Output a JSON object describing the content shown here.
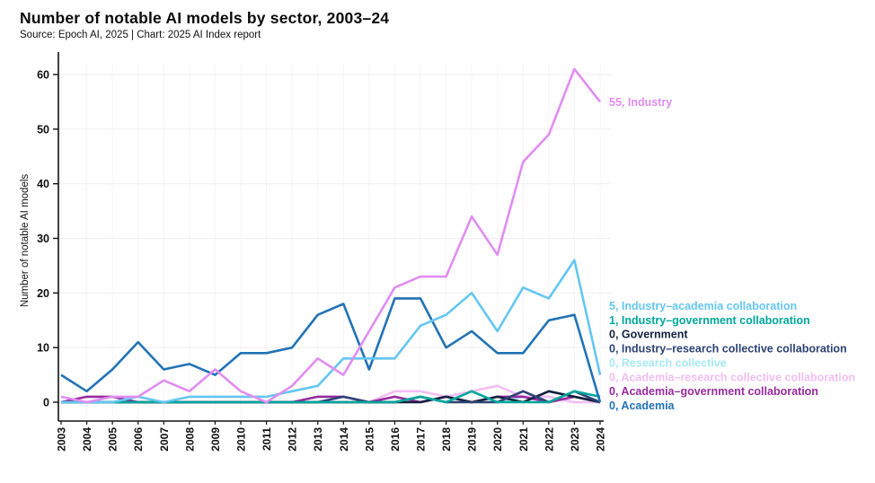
{
  "header": {
    "title": "Number of notable AI models by sector, 2003–24",
    "subtitle": "Source: Epoch AI, 2025 | Chart: 2025 AI Index report"
  },
  "chart_data": {
    "type": "line",
    "title": "Number of notable AI models by sector, 2003–24",
    "xlabel": "",
    "ylabel": "Number of notable AI models",
    "ylim": [
      0,
      60
    ],
    "yticks": [
      0,
      10,
      20,
      30,
      40,
      50,
      60
    ],
    "grid": true,
    "legend_position": "right-end-labels",
    "x": [
      2003,
      2004,
      2005,
      2006,
      2007,
      2008,
      2009,
      2010,
      2011,
      2012,
      2013,
      2014,
      2015,
      2016,
      2017,
      2018,
      2019,
      2020,
      2021,
      2022,
      2023,
      2024
    ],
    "series": [
      {
        "name": "Industry",
        "color": "#e18df2",
        "end_label": "55, Industry",
        "label_slot": "line-end",
        "values": [
          1,
          0,
          1,
          1,
          4,
          2,
          6,
          2,
          0,
          3,
          8,
          5,
          13,
          21,
          23,
          23,
          34,
          27,
          44,
          49,
          61,
          55
        ]
      },
      {
        "name": "Industry–academia collaboration",
        "color": "#65c6f2",
        "end_label": "5, Industry–academia collaboration",
        "label_slot": "stack",
        "values": [
          0,
          0,
          0,
          1,
          0,
          1,
          1,
          1,
          1,
          2,
          3,
          8,
          8,
          8,
          14,
          16,
          20,
          13,
          21,
          19,
          26,
          5
        ]
      },
      {
        "name": "Industry–government collaboration",
        "color": "#00a79b",
        "end_label": "1, Industry–government collaboration",
        "label_slot": "stack",
        "values": [
          0,
          0,
          0,
          0,
          0,
          0,
          0,
          0,
          0,
          0,
          0,
          0,
          0,
          0,
          1,
          0,
          2,
          0,
          0,
          0,
          2,
          1
        ]
      },
      {
        "name": "Government",
        "color": "#13203c",
        "end_label": "0, Government",
        "label_slot": "stack",
        "values": [
          0,
          0,
          0,
          0,
          0,
          0,
          0,
          0,
          0,
          0,
          0,
          0,
          0,
          0,
          0,
          1,
          0,
          1,
          0,
          2,
          1,
          0
        ]
      },
      {
        "name": "Industry–research collective collaboration",
        "color": "#2c4375",
        "end_label": "0, Industry–research collective collaboration",
        "label_slot": "stack",
        "values": [
          0,
          0,
          0,
          0,
          0,
          0,
          0,
          0,
          0,
          0,
          0,
          1,
          0,
          0,
          1,
          0,
          0,
          0,
          2,
          0,
          2,
          0
        ]
      },
      {
        "name": "Research collective",
        "color": "#a6e9f2",
        "end_label": "0, Research collective",
        "label_slot": "stack",
        "values": [
          0,
          0,
          0,
          0,
          0,
          0,
          0,
          0,
          0,
          0,
          0,
          0,
          0,
          0,
          1,
          0,
          2,
          0,
          1,
          1,
          0,
          0
        ]
      },
      {
        "name": "Academia–research collective collaboration",
        "color": "#f2bef2",
        "end_label": "0, Academia–research collective collaboration",
        "label_slot": "stack",
        "values": [
          0,
          0,
          0,
          0,
          0,
          0,
          0,
          0,
          0,
          0,
          0,
          0,
          0,
          2,
          2,
          1,
          2,
          3,
          1,
          1,
          0,
          0
        ]
      },
      {
        "name": "Academia–government collaboration",
        "color": "#972b9e",
        "end_label": "0, Academia–government collaboration",
        "label_slot": "stack",
        "values": [
          0,
          1,
          1,
          0,
          0,
          0,
          0,
          0,
          0,
          0,
          1,
          1,
          0,
          1,
          0,
          1,
          0,
          1,
          1,
          0,
          1,
          0
        ]
      },
      {
        "name": "Academia",
        "color": "#2173b5",
        "end_label": "0, Academia",
        "label_slot": "stack",
        "values": [
          5,
          2,
          6,
          11,
          6,
          7,
          5,
          9,
          9,
          10,
          16,
          18,
          6,
          19,
          19,
          10,
          13,
          9,
          9,
          15,
          16,
          0
        ]
      }
    ]
  }
}
